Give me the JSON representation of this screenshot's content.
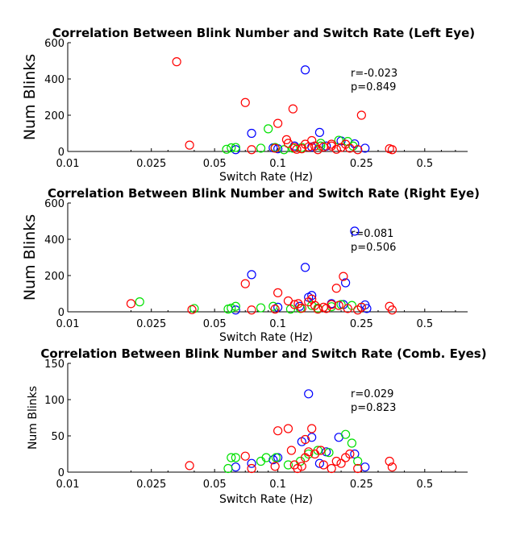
{
  "colors": {
    "blue": "#0000ff",
    "green": "#00e000",
    "red": "#ff0000",
    "axis": "#000000"
  },
  "chart_data": [
    {
      "type": "scatter",
      "title": "Correlation Between Blink Number and Switch Rate (Left Eye)",
      "xlabel": "Switch Rate (Hz)",
      "ylabel": "Num Blinks",
      "x_scale": "log",
      "xlim": [
        0.01,
        0.8
      ],
      "ylim": [
        0,
        600
      ],
      "x_ticks": [
        "0.01",
        "0.025",
        "0.05",
        "0.1",
        "0.25",
        "0.5"
      ],
      "y_ticks": [
        "0",
        "200",
        "400",
        "600"
      ],
      "stats": [
        "r=-0.023",
        "p=0.849"
      ],
      "series": [
        {
          "color": "blue",
          "points": [
            [
              0.075,
              100
            ],
            [
              0.063,
              10
            ],
            [
              0.095,
              20
            ],
            [
              0.12,
              30
            ],
            [
              0.135,
              450
            ],
            [
              0.158,
              105
            ],
            [
              0.2,
              58
            ],
            [
              0.232,
              42
            ],
            [
              0.26,
              18
            ],
            [
              0.17,
              30
            ],
            [
              0.1,
              15
            ],
            [
              0.145,
              25
            ]
          ]
        },
        {
          "color": "green",
          "points": [
            [
              0.057,
              12
            ],
            [
              0.06,
              20
            ],
            [
              0.063,
              22
            ],
            [
              0.083,
              18
            ],
            [
              0.09,
              125
            ],
            [
              0.097,
              22
            ],
            [
              0.107,
              10
            ],
            [
              0.118,
              18
            ],
            [
              0.13,
              22
            ],
            [
              0.16,
              45
            ],
            [
              0.195,
              62
            ],
            [
              0.215,
              55
            ],
            [
              0.228,
              30
            ],
            [
              0.16,
              30
            ]
          ]
        },
        {
          "color": "red",
          "points": [
            [
              0.033,
              495
            ],
            [
              0.038,
              35
            ],
            [
              0.07,
              270
            ],
            [
              0.075,
              10
            ],
            [
              0.1,
              155
            ],
            [
              0.097,
              18
            ],
            [
              0.11,
              65
            ],
            [
              0.118,
              235
            ],
            [
              0.112,
              45
            ],
            [
              0.12,
              22
            ],
            [
              0.123,
              12
            ],
            [
              0.13,
              15
            ],
            [
              0.14,
              25
            ],
            [
              0.145,
              60
            ],
            [
              0.15,
              30
            ],
            [
              0.155,
              10
            ],
            [
              0.165,
              25
            ],
            [
              0.18,
              30
            ],
            [
              0.19,
              12
            ],
            [
              0.2,
              22
            ],
            [
              0.21,
              40
            ],
            [
              0.22,
              18
            ],
            [
              0.24,
              10
            ],
            [
              0.25,
              200
            ],
            [
              0.34,
              15
            ],
            [
              0.35,
              10
            ],
            [
              0.18,
              40
            ],
            [
              0.135,
              40
            ]
          ]
        }
      ]
    },
    {
      "type": "scatter",
      "title": "Correlation Between Blink Number and Switch Rate (Right Eye)",
      "xlabel": "Switch Rate (Hz)",
      "ylabel": "Num Blinks",
      "x_scale": "log",
      "xlim": [
        0.01,
        0.8
      ],
      "ylim": [
        0,
        600
      ],
      "x_ticks": [
        "0.01",
        "0.025",
        "0.05",
        "0.1",
        "0.25",
        "0.5"
      ],
      "y_ticks": [
        "0",
        "200",
        "400",
        "600"
      ],
      "stats": [
        "r=0.081",
        "p=0.506"
      ],
      "series": [
        {
          "color": "blue",
          "points": [
            [
              0.075,
              205
            ],
            [
              0.063,
              10
            ],
            [
              0.1,
              25
            ],
            [
              0.127,
              30
            ],
            [
              0.135,
              245
            ],
            [
              0.14,
              80
            ],
            [
              0.145,
              90
            ],
            [
              0.205,
              40
            ],
            [
              0.21,
              160
            ],
            [
              0.232,
              445
            ],
            [
              0.26,
              38
            ],
            [
              0.265,
              18
            ],
            [
              0.18,
              45
            ]
          ]
        },
        {
          "color": "green",
          "points": [
            [
              0.022,
              55
            ],
            [
              0.04,
              18
            ],
            [
              0.058,
              15
            ],
            [
              0.06,
              20
            ],
            [
              0.063,
              30
            ],
            [
              0.083,
              22
            ],
            [
              0.095,
              30
            ],
            [
              0.115,
              15
            ],
            [
              0.128,
              18
            ],
            [
              0.145,
              35
            ],
            [
              0.155,
              20
            ],
            [
              0.18,
              28
            ],
            [
              0.2,
              40
            ],
            [
              0.225,
              35
            ],
            [
              0.25,
              25
            ]
          ]
        },
        {
          "color": "red",
          "points": [
            [
              0.02,
              45
            ],
            [
              0.039,
              12
            ],
            [
              0.07,
              155
            ],
            [
              0.075,
              10
            ],
            [
              0.1,
              105
            ],
            [
              0.097,
              15
            ],
            [
              0.112,
              60
            ],
            [
              0.12,
              40
            ],
            [
              0.125,
              45
            ],
            [
              0.13,
              20
            ],
            [
              0.14,
              55
            ],
            [
              0.145,
              70
            ],
            [
              0.15,
              35
            ],
            [
              0.155,
              15
            ],
            [
              0.165,
              25
            ],
            [
              0.17,
              18
            ],
            [
              0.19,
              130
            ],
            [
              0.195,
              35
            ],
            [
              0.205,
              195
            ],
            [
              0.215,
              18
            ],
            [
              0.24,
              10
            ],
            [
              0.25,
              25
            ],
            [
              0.34,
              30
            ],
            [
              0.35,
              10
            ],
            [
              0.18,
              40
            ]
          ]
        }
      ]
    },
    {
      "type": "scatter",
      "title": "Correlation Between Blink Number and Switch Rate (Comb. Eyes)",
      "xlabel": "Switch Rate (Hz)",
      "ylabel": "Num Blinks",
      "x_scale": "log",
      "xlim": [
        0.01,
        0.8
      ],
      "ylim": [
        0,
        150
      ],
      "x_ticks": [
        "0.01",
        "0.025",
        "0.05",
        "0.1",
        "0.25",
        "0.5"
      ],
      "y_ticks": [
        "0",
        "50",
        "100",
        "150"
      ],
      "stats": [
        "r=0.029",
        "p=0.823"
      ],
      "series": [
        {
          "color": "blue",
          "points": [
            [
              0.075,
              12
            ],
            [
              0.063,
              7
            ],
            [
              0.095,
              17
            ],
            [
              0.13,
              42
            ],
            [
              0.14,
              108
            ],
            [
              0.145,
              48
            ],
            [
              0.158,
              12
            ],
            [
              0.195,
              48
            ],
            [
              0.232,
              25
            ],
            [
              0.26,
              7
            ],
            [
              0.17,
              28
            ],
            [
              0.1,
              20
            ]
          ]
        },
        {
          "color": "green",
          "points": [
            [
              0.058,
              5
            ],
            [
              0.06,
              20
            ],
            [
              0.063,
              20
            ],
            [
              0.083,
              15
            ],
            [
              0.088,
              20
            ],
            [
              0.098,
              20
            ],
            [
              0.112,
              10
            ],
            [
              0.128,
              15
            ],
            [
              0.14,
              25
            ],
            [
              0.155,
              30
            ],
            [
              0.175,
              27
            ],
            [
              0.21,
              52
            ],
            [
              0.225,
              40
            ],
            [
              0.24,
              15
            ]
          ]
        },
        {
          "color": "red",
          "points": [
            [
              0.038,
              9
            ],
            [
              0.07,
              22
            ],
            [
              0.075,
              5
            ],
            [
              0.1,
              57
            ],
            [
              0.097,
              8
            ],
            [
              0.112,
              60
            ],
            [
              0.116,
              30
            ],
            [
              0.12,
              10
            ],
            [
              0.124,
              5
            ],
            [
              0.13,
              8
            ],
            [
              0.135,
              20
            ],
            [
              0.14,
              28
            ],
            [
              0.145,
              60
            ],
            [
              0.15,
              25
            ],
            [
              0.16,
              30
            ],
            [
              0.165,
              10
            ],
            [
              0.18,
              5
            ],
            [
              0.19,
              15
            ],
            [
              0.2,
              12
            ],
            [
              0.21,
              20
            ],
            [
              0.22,
              25
            ],
            [
              0.24,
              5
            ],
            [
              0.34,
              15
            ],
            [
              0.35,
              7
            ],
            [
              0.135,
              45
            ]
          ]
        }
      ]
    }
  ]
}
